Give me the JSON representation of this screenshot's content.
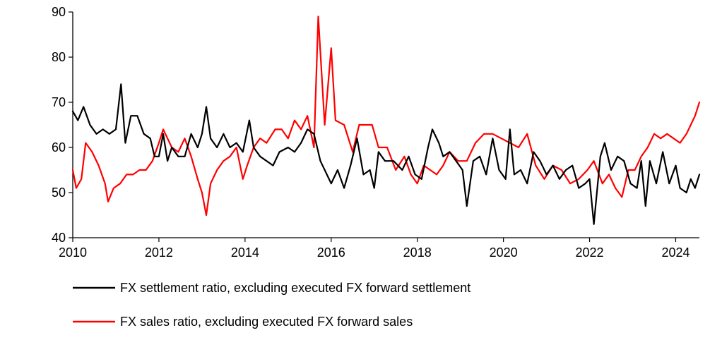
{
  "chart_data": {
    "type": "line",
    "title": "",
    "xlabel": "",
    "ylabel": "",
    "xlim": [
      2010,
      2024.55
    ],
    "ylim": [
      40,
      90
    ],
    "x_ticks": [
      2010,
      2012,
      2014,
      2016,
      2018,
      2020,
      2022,
      2024
    ],
    "y_ticks": [
      40,
      50,
      60,
      70,
      80,
      90
    ],
    "grid": false,
    "legend_position": "bottom",
    "series": [
      {
        "name": "FX settlement ratio, excluding executed FX forward settlement",
        "color": "#000000",
        "points": [
          [
            2010.0,
            68
          ],
          [
            2010.12,
            66
          ],
          [
            2010.25,
            69
          ],
          [
            2010.4,
            65
          ],
          [
            2010.55,
            63
          ],
          [
            2010.7,
            64
          ],
          [
            2010.85,
            63
          ],
          [
            2011.0,
            64
          ],
          [
            2011.12,
            74
          ],
          [
            2011.22,
            61
          ],
          [
            2011.35,
            67
          ],
          [
            2011.5,
            67
          ],
          [
            2011.65,
            63
          ],
          [
            2011.8,
            62
          ],
          [
            2011.9,
            58
          ],
          [
            2012.0,
            58
          ],
          [
            2012.1,
            63
          ],
          [
            2012.2,
            57
          ],
          [
            2012.3,
            60
          ],
          [
            2012.45,
            58
          ],
          [
            2012.6,
            58
          ],
          [
            2012.75,
            63
          ],
          [
            2012.9,
            60
          ],
          [
            2013.0,
            63
          ],
          [
            2013.1,
            69
          ],
          [
            2013.2,
            62
          ],
          [
            2013.35,
            60
          ],
          [
            2013.5,
            63
          ],
          [
            2013.65,
            60
          ],
          [
            2013.8,
            61
          ],
          [
            2013.95,
            59
          ],
          [
            2014.1,
            66
          ],
          [
            2014.2,
            60
          ],
          [
            2014.35,
            58
          ],
          [
            2014.5,
            57
          ],
          [
            2014.65,
            56
          ],
          [
            2014.8,
            59
          ],
          [
            2015.0,
            60
          ],
          [
            2015.15,
            59
          ],
          [
            2015.3,
            61
          ],
          [
            2015.45,
            64
          ],
          [
            2015.6,
            63
          ],
          [
            2015.75,
            57
          ],
          [
            2015.9,
            54
          ],
          [
            2016.0,
            52
          ],
          [
            2016.15,
            55
          ],
          [
            2016.3,
            51
          ],
          [
            2016.45,
            56
          ],
          [
            2016.6,
            62
          ],
          [
            2016.75,
            54
          ],
          [
            2016.9,
            55
          ],
          [
            2017.0,
            51
          ],
          [
            2017.1,
            59
          ],
          [
            2017.25,
            57
          ],
          [
            2017.45,
            57
          ],
          [
            2017.65,
            55
          ],
          [
            2017.8,
            58
          ],
          [
            2017.95,
            54
          ],
          [
            2018.1,
            53
          ],
          [
            2018.25,
            60
          ],
          [
            2018.35,
            64
          ],
          [
            2018.5,
            61
          ],
          [
            2018.6,
            58
          ],
          [
            2018.75,
            59
          ],
          [
            2018.9,
            57
          ],
          [
            2019.05,
            55
          ],
          [
            2019.15,
            47
          ],
          [
            2019.3,
            57
          ],
          [
            2019.45,
            58
          ],
          [
            2019.6,
            54
          ],
          [
            2019.75,
            62
          ],
          [
            2019.9,
            55
          ],
          [
            2020.05,
            53
          ],
          [
            2020.15,
            64
          ],
          [
            2020.25,
            54
          ],
          [
            2020.4,
            55
          ],
          [
            2020.55,
            52
          ],
          [
            2020.7,
            59
          ],
          [
            2020.85,
            57
          ],
          [
            2021.0,
            54
          ],
          [
            2021.15,
            56
          ],
          [
            2021.3,
            53
          ],
          [
            2021.45,
            55
          ],
          [
            2021.6,
            56
          ],
          [
            2021.75,
            51
          ],
          [
            2021.9,
            52
          ],
          [
            2022.0,
            53
          ],
          [
            2022.1,
            43
          ],
          [
            2022.25,
            58
          ],
          [
            2022.35,
            61
          ],
          [
            2022.5,
            55
          ],
          [
            2022.65,
            58
          ],
          [
            2022.8,
            57
          ],
          [
            2022.95,
            52
          ],
          [
            2023.1,
            51
          ],
          [
            2023.2,
            57
          ],
          [
            2023.3,
            47
          ],
          [
            2023.4,
            57
          ],
          [
            2023.55,
            52
          ],
          [
            2023.7,
            59
          ],
          [
            2023.85,
            52
          ],
          [
            2024.0,
            56
          ],
          [
            2024.1,
            51
          ],
          [
            2024.25,
            50
          ],
          [
            2024.35,
            53
          ],
          [
            2024.45,
            51
          ],
          [
            2024.55,
            54
          ]
        ]
      },
      {
        "name": "FX sales ratio, excluding executed FX forward sales",
        "color": "#ff0000",
        "points": [
          [
            2010.0,
            55
          ],
          [
            2010.08,
            51
          ],
          [
            2010.2,
            53
          ],
          [
            2010.3,
            61
          ],
          [
            2010.45,
            59
          ],
          [
            2010.6,
            56
          ],
          [
            2010.75,
            52
          ],
          [
            2010.82,
            48
          ],
          [
            2010.95,
            51
          ],
          [
            2011.1,
            52
          ],
          [
            2011.25,
            54
          ],
          [
            2011.4,
            54
          ],
          [
            2011.55,
            55
          ],
          [
            2011.7,
            55
          ],
          [
            2011.85,
            57
          ],
          [
            2012.0,
            61
          ],
          [
            2012.1,
            64
          ],
          [
            2012.2,
            62
          ],
          [
            2012.3,
            60
          ],
          [
            2012.45,
            59
          ],
          [
            2012.6,
            62
          ],
          [
            2012.75,
            58
          ],
          [
            2012.9,
            53
          ],
          [
            2013.0,
            50
          ],
          [
            2013.1,
            45
          ],
          [
            2013.2,
            52
          ],
          [
            2013.35,
            55
          ],
          [
            2013.5,
            57
          ],
          [
            2013.65,
            58
          ],
          [
            2013.8,
            60
          ],
          [
            2013.95,
            53
          ],
          [
            2014.05,
            56
          ],
          [
            2014.2,
            60
          ],
          [
            2014.35,
            62
          ],
          [
            2014.5,
            61
          ],
          [
            2014.7,
            64
          ],
          [
            2014.85,
            64
          ],
          [
            2015.0,
            62
          ],
          [
            2015.15,
            66
          ],
          [
            2015.3,
            64
          ],
          [
            2015.45,
            67
          ],
          [
            2015.6,
            60
          ],
          [
            2015.7,
            89
          ],
          [
            2015.85,
            65
          ],
          [
            2016.0,
            82
          ],
          [
            2016.1,
            66
          ],
          [
            2016.3,
            65
          ],
          [
            2016.5,
            59
          ],
          [
            2016.65,
            65
          ],
          [
            2016.8,
            65
          ],
          [
            2016.95,
            65
          ],
          [
            2017.1,
            60
          ],
          [
            2017.3,
            60
          ],
          [
            2017.5,
            55
          ],
          [
            2017.7,
            58
          ],
          [
            2017.85,
            54
          ],
          [
            2018.0,
            52
          ],
          [
            2018.15,
            56
          ],
          [
            2018.3,
            55
          ],
          [
            2018.45,
            54
          ],
          [
            2018.6,
            56
          ],
          [
            2018.75,
            59
          ],
          [
            2018.95,
            57
          ],
          [
            2019.15,
            57
          ],
          [
            2019.35,
            61
          ],
          [
            2019.55,
            63
          ],
          [
            2019.75,
            63
          ],
          [
            2019.95,
            62
          ],
          [
            2020.15,
            61
          ],
          [
            2020.35,
            60
          ],
          [
            2020.55,
            63
          ],
          [
            2020.75,
            56
          ],
          [
            2020.95,
            53
          ],
          [
            2021.15,
            56
          ],
          [
            2021.35,
            55
          ],
          [
            2021.55,
            52
          ],
          [
            2021.75,
            53
          ],
          [
            2021.95,
            55
          ],
          [
            2022.1,
            57
          ],
          [
            2022.3,
            52
          ],
          [
            2022.45,
            54
          ],
          [
            2022.6,
            51
          ],
          [
            2022.75,
            49
          ],
          [
            2022.9,
            55
          ],
          [
            2023.05,
            55
          ],
          [
            2023.2,
            58
          ],
          [
            2023.35,
            60
          ],
          [
            2023.5,
            63
          ],
          [
            2023.65,
            62
          ],
          [
            2023.8,
            63
          ],
          [
            2023.95,
            62
          ],
          [
            2024.1,
            61
          ],
          [
            2024.25,
            63
          ],
          [
            2024.35,
            65
          ],
          [
            2024.45,
            67
          ],
          [
            2024.55,
            70
          ]
        ]
      }
    ]
  }
}
